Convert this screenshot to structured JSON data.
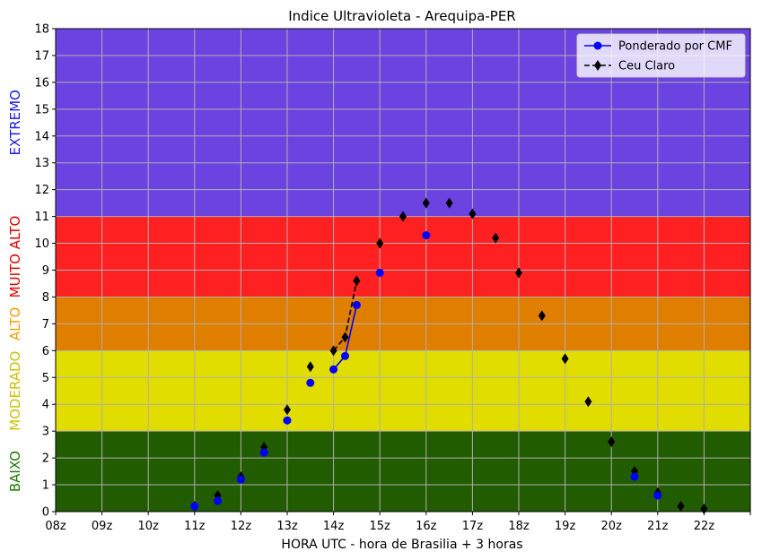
{
  "chart_data": {
    "type": "line",
    "title": "Indice Ultravioleta - Arequipa-PER",
    "xlabel": "HORA UTC - hora de Brasilia + 3 horas",
    "ylabel": "",
    "xlim": [
      8,
      23
    ],
    "ylim": [
      0,
      18
    ],
    "grid": true,
    "legend_position": "top-right",
    "x_ticks": [
      {
        "value": 8,
        "label": "08z"
      },
      {
        "value": 9,
        "label": "09z"
      },
      {
        "value": 10,
        "label": "10z"
      },
      {
        "value": 11,
        "label": "11z"
      },
      {
        "value": 12,
        "label": "12z"
      },
      {
        "value": 13,
        "label": "13z"
      },
      {
        "value": 14,
        "label": "14z"
      },
      {
        "value": 15,
        "label": "15z"
      },
      {
        "value": 16,
        "label": "16z"
      },
      {
        "value": 17,
        "label": "17z"
      },
      {
        "value": 18,
        "label": "18z"
      },
      {
        "value": 19,
        "label": "19z"
      },
      {
        "value": 20,
        "label": "20z"
      },
      {
        "value": 21,
        "label": "21z"
      },
      {
        "value": 22,
        "label": "22z"
      },
      {
        "value": 23,
        "label": ""
      }
    ],
    "y_ticks": [
      0,
      1,
      2,
      3,
      4,
      5,
      6,
      7,
      8,
      9,
      10,
      11,
      12,
      13,
      14,
      15,
      16,
      17,
      18
    ],
    "bands": [
      {
        "name": "BAIXO",
        "y_from": 0,
        "y_to": 3,
        "fill": "#215c00",
        "label_color": "#1a7a00"
      },
      {
        "name": "MODERADO",
        "y_from": 3,
        "y_to": 6,
        "fill": "#e1dd00",
        "label_color": "#cdbf00"
      },
      {
        "name": "ALTO",
        "y_from": 6,
        "y_to": 8,
        "fill": "#e07e00",
        "label_color": "#f0a000"
      },
      {
        "name": "MUITO ALTO",
        "y_from": 8,
        "y_to": 11,
        "fill": "#ff2121",
        "label_color": "#e00000"
      },
      {
        "name": "EXTREMO",
        "y_from": 11,
        "y_to": 18,
        "fill": "#6b43e0",
        "label_color": "#1a1ae0"
      }
    ],
    "series": [
      {
        "name": "Ponderado por CMF",
        "color": "#0000ff",
        "marker": "circle",
        "line_style": "solid",
        "points": [
          {
            "x": 11.0,
            "y": 0.2
          },
          {
            "x": 11.5,
            "y": 0.4
          },
          {
            "x": 12.0,
            "y": 1.2
          },
          {
            "x": 12.5,
            "y": 2.2
          },
          {
            "x": 13.0,
            "y": 3.4
          },
          {
            "x": 13.5,
            "y": 4.8
          },
          {
            "x": 14.0,
            "y": 5.3
          },
          {
            "x": 14.25,
            "y": 5.8
          },
          {
            "x": 14.5,
            "y": 7.7
          },
          {
            "x": 15.0,
            "y": 8.9
          },
          {
            "x": 16.0,
            "y": 10.3
          },
          {
            "x": 20.5,
            "y": 1.3
          },
          {
            "x": 21.0,
            "y": 0.6
          }
        ],
        "line_segments": [
          [
            14.0,
            14.25,
            14.5
          ]
        ]
      },
      {
        "name": "Ceu Claro",
        "color": "#000000",
        "marker": "diamond",
        "line_style": "dashed",
        "points": [
          {
            "x": 11.0,
            "y": 0.2
          },
          {
            "x": 11.5,
            "y": 0.6
          },
          {
            "x": 12.0,
            "y": 1.3
          },
          {
            "x": 12.5,
            "y": 2.4
          },
          {
            "x": 13.0,
            "y": 3.8
          },
          {
            "x": 13.5,
            "y": 5.4
          },
          {
            "x": 14.0,
            "y": 6.0
          },
          {
            "x": 14.25,
            "y": 6.5
          },
          {
            "x": 14.5,
            "y": 8.6
          },
          {
            "x": 15.0,
            "y": 10.0
          },
          {
            "x": 15.5,
            "y": 11.0
          },
          {
            "x": 16.0,
            "y": 11.5
          },
          {
            "x": 16.5,
            "y": 11.5
          },
          {
            "x": 17.0,
            "y": 11.1
          },
          {
            "x": 17.5,
            "y": 10.2
          },
          {
            "x": 18.0,
            "y": 8.9
          },
          {
            "x": 18.5,
            "y": 7.3
          },
          {
            "x": 19.0,
            "y": 5.7
          },
          {
            "x": 19.5,
            "y": 4.1
          },
          {
            "x": 20.0,
            "y": 2.6
          },
          {
            "x": 20.5,
            "y": 1.5
          },
          {
            "x": 21.0,
            "y": 0.7
          },
          {
            "x": 21.5,
            "y": 0.2
          },
          {
            "x": 22.0,
            "y": 0.1
          }
        ],
        "line_segments": [
          [
            14.0,
            14.25,
            14.5
          ]
        ]
      }
    ]
  }
}
